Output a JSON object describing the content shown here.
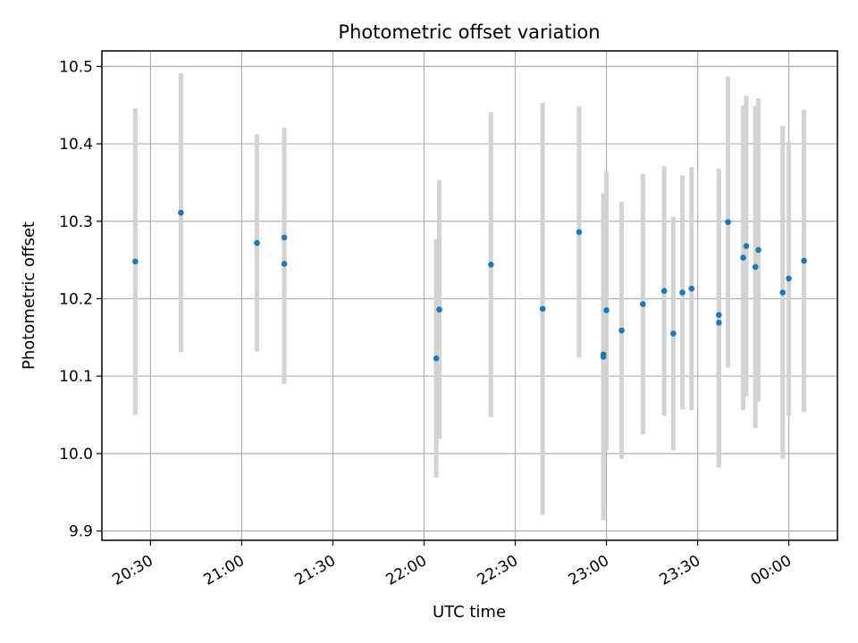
{
  "chart_data": {
    "type": "scatter",
    "title": "Photometric offset variation",
    "xlabel": "UTC time",
    "ylabel": "Photometric offset",
    "x_tick_labels": [
      "20:30",
      "21:00",
      "21:30",
      "22:00",
      "22:30",
      "23:00",
      "23:30",
      "00:00"
    ],
    "x_tick_minutes": [
      1230,
      1260,
      1290,
      1320,
      1350,
      1380,
      1410,
      1440
    ],
    "xlim_minutes": [
      1214,
      1456
    ],
    "y_tick_labels": [
      "9.9",
      "10.0",
      "10.1",
      "10.2",
      "10.3",
      "10.4",
      "10.5"
    ],
    "y_ticks": [
      9.9,
      10.0,
      10.1,
      10.2,
      10.3,
      10.4,
      10.5
    ],
    "ylim": [
      9.888,
      10.52
    ],
    "grid": true,
    "colors": {
      "point": "#1f77b4",
      "errorbar": "#d3d3d3",
      "grid": "#b0b0b0"
    },
    "series": [
      {
        "points": [
          {
            "t": "20:25",
            "y": 10.248,
            "err": 0.198
          },
          {
            "t": "20:40",
            "y": 10.311,
            "err": 0.18
          },
          {
            "t": "21:05",
            "y": 10.272,
            "err": 0.14
          },
          {
            "t": "21:14",
            "y": 10.279,
            "err": 0.142
          },
          {
            "t": "21:14",
            "y": 10.245,
            "err": 0.155
          },
          {
            "t": "22:04",
            "y": 10.123,
            "err": 0.154
          },
          {
            "t": "22:05",
            "y": 10.186,
            "err": 0.167
          },
          {
            "t": "22:22",
            "y": 10.244,
            "err": 0.197
          },
          {
            "t": "22:39",
            "y": 10.187,
            "err": 0.266
          },
          {
            "t": "22:51",
            "y": 10.286,
            "err": 0.162
          },
          {
            "t": "22:59",
            "y": 10.125,
            "err": 0.211
          },
          {
            "t": "22:59",
            "y": 10.128,
            "err": 0.198
          },
          {
            "t": "23:00",
            "y": 10.185,
            "err": 0.18
          },
          {
            "t": "23:05",
            "y": 10.159,
            "err": 0.166
          },
          {
            "t": "23:12",
            "y": 10.193,
            "err": 0.168
          },
          {
            "t": "23:19",
            "y": 10.21,
            "err": 0.161
          },
          {
            "t": "23:22",
            "y": 10.155,
            "err": 0.151
          },
          {
            "t": "23:25",
            "y": 10.208,
            "err": 0.151
          },
          {
            "t": "23:28",
            "y": 10.213,
            "err": 0.157
          },
          {
            "t": "23:37",
            "y": 10.179,
            "err": 0.189
          },
          {
            "t": "23:37",
            "y": 10.169,
            "err": 0.187
          },
          {
            "t": "23:40",
            "y": 10.299,
            "err": 0.188
          },
          {
            "t": "23:45",
            "y": 10.253,
            "err": 0.197
          },
          {
            "t": "23:46",
            "y": 10.268,
            "err": 0.194
          },
          {
            "t": "23:49",
            "y": 10.241,
            "err": 0.208
          },
          {
            "t": "23:50",
            "y": 10.263,
            "err": 0.196
          },
          {
            "t": "23:58",
            "y": 10.208,
            "err": 0.215
          },
          {
            "t": "00:00",
            "y": 10.226,
            "err": 0.177
          },
          {
            "t": "00:05",
            "y": 10.249,
            "err": 0.195
          }
        ]
      }
    ]
  }
}
